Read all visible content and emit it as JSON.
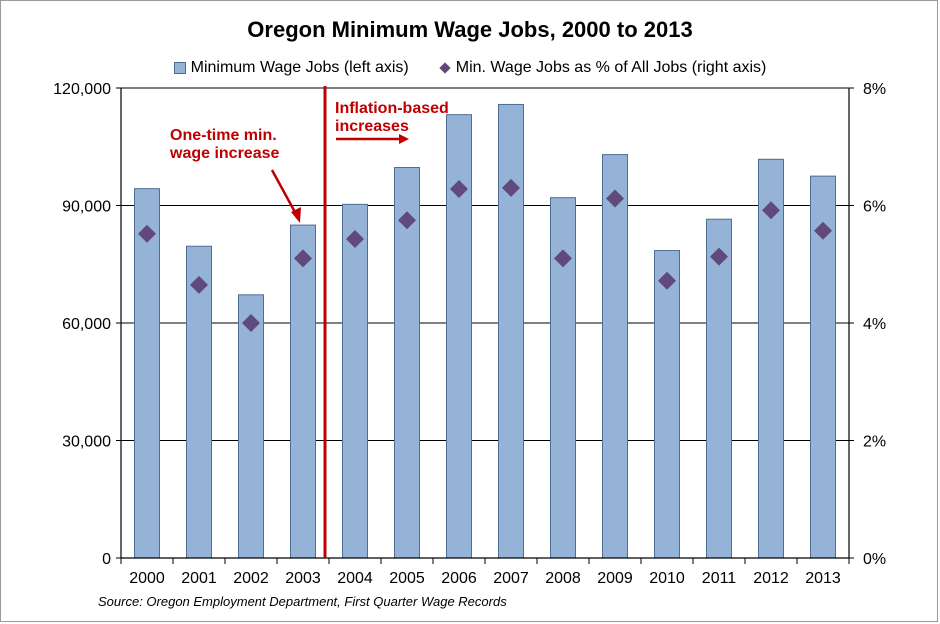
{
  "chart_data": {
    "type": "bar",
    "title": "Oregon Minimum Wage Jobs, 2000 to 2013",
    "categories": [
      "2000",
      "2001",
      "2002",
      "2003",
      "2004",
      "2005",
      "2006",
      "2007",
      "2008",
      "2009",
      "2010",
      "2011",
      "2012",
      "2013"
    ],
    "series": [
      {
        "name": "Minimum Wage Jobs (left axis)",
        "type": "bar",
        "axis": "left",
        "values": [
          94300,
          79600,
          67200,
          85000,
          90300,
          99700,
          113200,
          115800,
          92000,
          103000,
          78500,
          86500,
          101800,
          97500
        ],
        "color": "#95B3D7"
      },
      {
        "name": "Min. Wage Jobs as % of All Jobs (right axis)",
        "type": "scatter",
        "marker": "diamond",
        "axis": "right",
        "values": [
          5.52,
          4.65,
          4.0,
          5.1,
          5.43,
          5.75,
          6.28,
          6.3,
          5.1,
          6.12,
          4.72,
          5.13,
          5.92,
          5.57
        ],
        "color": "#604A7B"
      }
    ],
    "left_axis": {
      "range": [
        0,
        120000
      ],
      "ticks": [
        "0",
        "30,000",
        "60,000",
        "90,000",
        "120,000"
      ]
    },
    "right_axis": {
      "range": [
        0,
        8
      ],
      "ticks": [
        "0%",
        "2%",
        "4%",
        "6%",
        "8%"
      ]
    },
    "grid": true,
    "legend_position": "top",
    "annotations": {
      "divider_between": [
        "2003",
        "2004"
      ],
      "divider_color": "#C00000",
      "one_time": {
        "lines": [
          "One-time min.",
          "wage increase"
        ],
        "points_to": "2003"
      },
      "inflation": {
        "lines": [
          "Inflation-based",
          "increases"
        ]
      }
    }
  },
  "source": "Source: Oregon Employment Department, First Quarter Wage Records"
}
